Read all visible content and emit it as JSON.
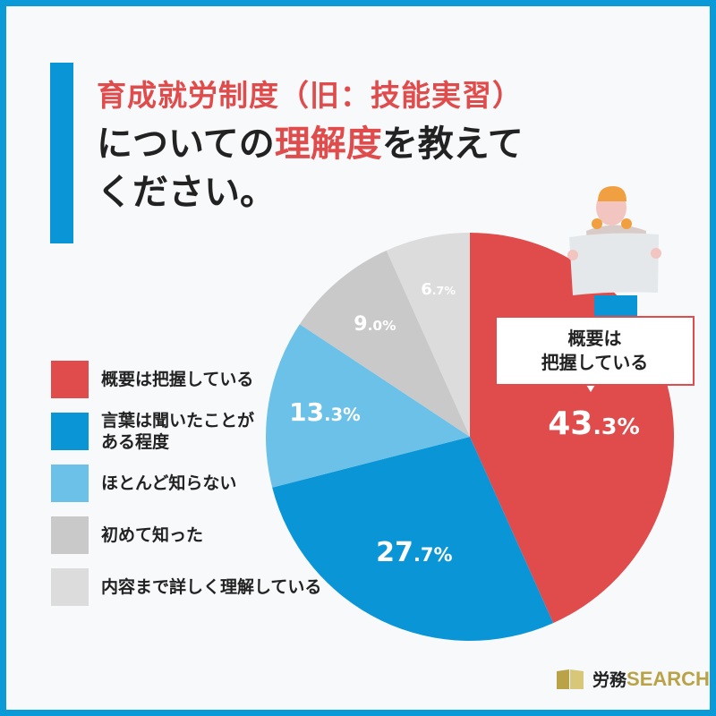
{
  "title": {
    "line1": "育成就労制度（旧：技能実習）",
    "line2_pre": "についての",
    "line2_highlight": "理解度",
    "line2_post": "を教えて",
    "line3": "ください。"
  },
  "callout": {
    "line1": "概要は",
    "line2": "把握している"
  },
  "logo": {
    "kanji": "労務",
    "latin": "SEARCH"
  },
  "chart_data": {
    "type": "pie",
    "start": "top",
    "direction": "clockwise",
    "legend_position": "left",
    "categories": [
      "概要は把握している",
      "言葉は聞いたことがある程度",
      "ほとんど知らない",
      "初めて知った",
      "内容まで詳しく理解している"
    ],
    "legend_labels": [
      [
        "概要は把握している"
      ],
      [
        "言葉は聞いたことが",
        "ある程度"
      ],
      [
        "ほとんど知らない"
      ],
      [
        "初めて知った"
      ],
      [
        "内容まで詳しく理解している"
      ]
    ],
    "values": [
      43.3,
      27.7,
      13.3,
      9.0,
      6.7
    ],
    "labels": [
      [
        "43",
        ".3%"
      ],
      [
        "27",
        ".7%"
      ],
      [
        "13",
        ".3%"
      ],
      [
        "9",
        ".0%"
      ],
      [
        "6",
        ".7%"
      ]
    ],
    "colors": [
      "#e04b4b",
      "#0a96d6",
      "#6cc1e8",
      "#c9c9c9",
      "#dcdcdc"
    ]
  }
}
